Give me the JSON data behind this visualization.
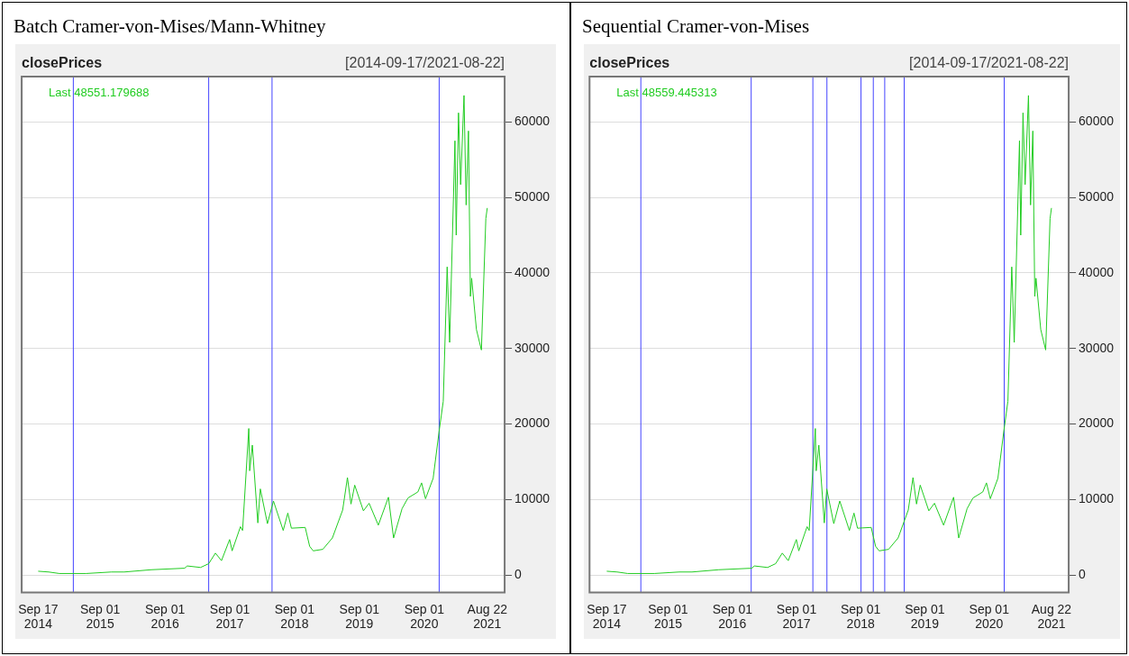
{
  "chart_data": [
    {
      "type": "line",
      "title": "Batch Cramer-von-Mises/Mann-Whitney",
      "subtitle": "closePrices",
      "annotations": [
        "[2014-09-17/2021-08-22]",
        "Last 48551.179688"
      ],
      "x": [
        "2014-09-17",
        "2014-11-15",
        "2015-01-14",
        "2015-06-15",
        "2015-11-04",
        "2016-01-15",
        "2016-06-16",
        "2016-12-20",
        "2017-01-04",
        "2017-03-20",
        "2017-05-05",
        "2017-06-12",
        "2017-07-16",
        "2017-08-31",
        "2017-09-14",
        "2017-10-31",
        "2017-11-12",
        "2017-12-17",
        "2017-12-22",
        "2018-01-06",
        "2018-02-06",
        "2018-02-20",
        "2018-04-01",
        "2018-05-05",
        "2018-06-29",
        "2018-07-25",
        "2018-08-14",
        "2018-10-31",
        "2018-11-25",
        "2018-12-15",
        "2019-02-07",
        "2019-04-02",
        "2019-05-30",
        "2019-06-26",
        "2019-07-16",
        "2019-08-06",
        "2019-09-24",
        "2019-10-26",
        "2019-12-17",
        "2020-02-12",
        "2020-03-12",
        "2020-04-29",
        "2020-06-01",
        "2020-07-27",
        "2020-08-17",
        "2020-09-08",
        "2020-10-21",
        "2020-11-24",
        "2020-12-17",
        "2021-01-08",
        "2021-01-22",
        "2021-02-21",
        "2021-02-28",
        "2021-03-13",
        "2021-03-25",
        "2021-04-13",
        "2021-04-25",
        "2021-05-08",
        "2021-05-19",
        "2021-05-26",
        "2021-06-22",
        "2021-07-20",
        "2021-08-14",
        "2021-08-22"
      ],
      "series": [
        {
          "color": "#22cc22",
          "values": [
            500,
            400,
            200,
            200,
            400,
            400,
            700,
            900,
            1200,
            1000,
            1500,
            2900,
            1900,
            4700,
            3200,
            6400,
            5900,
            19400,
            13800,
            17200,
            6900,
            11400,
            6800,
            9800,
            5900,
            8200,
            6200,
            6300,
            3800,
            3200,
            3400,
            4900,
            8600,
            12900,
            9400,
            11900,
            8500,
            9500,
            6600,
            10300,
            4900,
            8800,
            10200,
            11000,
            12200,
            10100,
            12800,
            19100,
            23000,
            40800,
            30800,
            57500,
            45000,
            61200,
            51700,
            63500,
            49000,
            58800,
            36900,
            39300,
            32500,
            29800,
            47200,
            48600
          ]
        }
      ],
      "xlim": [
        "2014-06-16",
        "2021-11-28"
      ],
      "xticks": [
        {
          "value": "2014-09-17",
          "label": "Sep 17 2014"
        },
        {
          "value": "2015-09-01",
          "label": "Sep 01 2015"
        },
        {
          "value": "2016-09-01",
          "label": "Sep 01 2016"
        },
        {
          "value": "2017-09-01",
          "label": "Sep 01 2017"
        },
        {
          "value": "2018-09-01",
          "label": "Sep 01 2018"
        },
        {
          "value": "2019-09-01",
          "label": "Sep 01 2019"
        },
        {
          "value": "2020-09-01",
          "label": "Sep 01 2020"
        },
        {
          "value": "2021-08-22",
          "label": "Aug 22 2021"
        }
      ],
      "ylim": [
        -2300,
        66000
      ],
      "yticks": [
        0,
        10000,
        20000,
        30000,
        40000,
        50000,
        60000
      ],
      "grid": "y",
      "legend": false,
      "marker": "none",
      "ref_lines": [
        {
          "axis": "x",
          "value": "2015-04-03",
          "color": "#4444ff"
        },
        {
          "axis": "x",
          "value": "2017-05-05",
          "color": "#4444ff"
        },
        {
          "axis": "x",
          "value": "2018-04-27",
          "color": "#4444ff"
        },
        {
          "axis": "x",
          "value": "2020-11-24",
          "color": "#4444ff"
        }
      ]
    },
    {
      "type": "line",
      "title": "Sequential Cramer-von-Mises",
      "subtitle": "closePrices",
      "annotations": [
        "[2014-09-17/2021-08-22]",
        "Last 48559.445313"
      ],
      "x": [
        "2014-09-17",
        "2014-11-15",
        "2015-01-14",
        "2015-06-15",
        "2015-11-04",
        "2016-01-15",
        "2016-06-16",
        "2016-12-20",
        "2017-01-04",
        "2017-03-20",
        "2017-05-05",
        "2017-06-12",
        "2017-07-16",
        "2017-08-31",
        "2017-09-14",
        "2017-10-31",
        "2017-11-12",
        "2017-12-17",
        "2017-12-22",
        "2018-01-06",
        "2018-02-06",
        "2018-02-20",
        "2018-04-01",
        "2018-05-05",
        "2018-06-29",
        "2018-07-25",
        "2018-08-14",
        "2018-10-31",
        "2018-11-25",
        "2018-12-15",
        "2019-02-07",
        "2019-04-02",
        "2019-05-30",
        "2019-06-26",
        "2019-07-16",
        "2019-08-06",
        "2019-09-24",
        "2019-10-26",
        "2019-12-17",
        "2020-02-12",
        "2020-03-12",
        "2020-04-29",
        "2020-06-01",
        "2020-07-27",
        "2020-08-17",
        "2020-09-08",
        "2020-10-21",
        "2020-11-24",
        "2020-12-17",
        "2021-01-08",
        "2021-01-22",
        "2021-02-21",
        "2021-02-28",
        "2021-03-13",
        "2021-03-25",
        "2021-04-13",
        "2021-04-25",
        "2021-05-08",
        "2021-05-19",
        "2021-05-26",
        "2021-06-22",
        "2021-07-20",
        "2021-08-14",
        "2021-08-22"
      ],
      "series": [
        {
          "color": "#22cc22",
          "values": [
            500,
            400,
            200,
            200,
            400,
            400,
            700,
            900,
            1200,
            1000,
            1500,
            2900,
            1900,
            4700,
            3200,
            6400,
            5900,
            19400,
            13800,
            17200,
            6900,
            11400,
            6800,
            9800,
            5900,
            8200,
            6200,
            6300,
            3800,
            3200,
            3400,
            4900,
            8600,
            12900,
            9400,
            11900,
            8500,
            9500,
            6600,
            10300,
            4900,
            8800,
            10200,
            11000,
            12200,
            10100,
            12800,
            19100,
            23000,
            40800,
            30800,
            57500,
            45000,
            61200,
            51700,
            63500,
            49000,
            58800,
            36900,
            39300,
            32500,
            29800,
            47200,
            48600
          ]
        }
      ],
      "xlim": [
        "2014-06-11",
        "2021-11-28"
      ],
      "xticks": [
        {
          "value": "2014-09-17",
          "label": "Sep 17 2014"
        },
        {
          "value": "2015-09-01",
          "label": "Sep 01 2015"
        },
        {
          "value": "2016-09-01",
          "label": "Sep 01 2016"
        },
        {
          "value": "2017-09-01",
          "label": "Sep 01 2017"
        },
        {
          "value": "2018-09-01",
          "label": "Sep 01 2018"
        },
        {
          "value": "2019-09-01",
          "label": "Sep 01 2019"
        },
        {
          "value": "2020-09-01",
          "label": "Sep 01 2020"
        },
        {
          "value": "2021-08-22",
          "label": "Aug 22 2021"
        }
      ],
      "ylim": [
        -2300,
        66000
      ],
      "yticks": [
        0,
        10000,
        20000,
        30000,
        40000,
        50000,
        60000
      ],
      "grid": "y",
      "legend": false,
      "marker": "none",
      "ref_lines": [
        {
          "axis": "x",
          "value": "2015-03-30",
          "color": "#4444ff"
        },
        {
          "axis": "x",
          "value": "2016-12-17",
          "color": "#4444ff"
        },
        {
          "axis": "x",
          "value": "2017-12-03",
          "color": "#4444ff"
        },
        {
          "axis": "x",
          "value": "2018-02-21",
          "color": "#4444ff"
        },
        {
          "axis": "x",
          "value": "2018-09-03",
          "color": "#4444ff"
        },
        {
          "axis": "x",
          "value": "2018-11-12",
          "color": "#4444ff"
        },
        {
          "axis": "x",
          "value": "2019-01-16",
          "color": "#4444ff"
        },
        {
          "axis": "x",
          "value": "2019-05-07",
          "color": "#4444ff"
        },
        {
          "axis": "x",
          "value": "2020-11-26",
          "color": "#4444ff"
        }
      ]
    }
  ]
}
